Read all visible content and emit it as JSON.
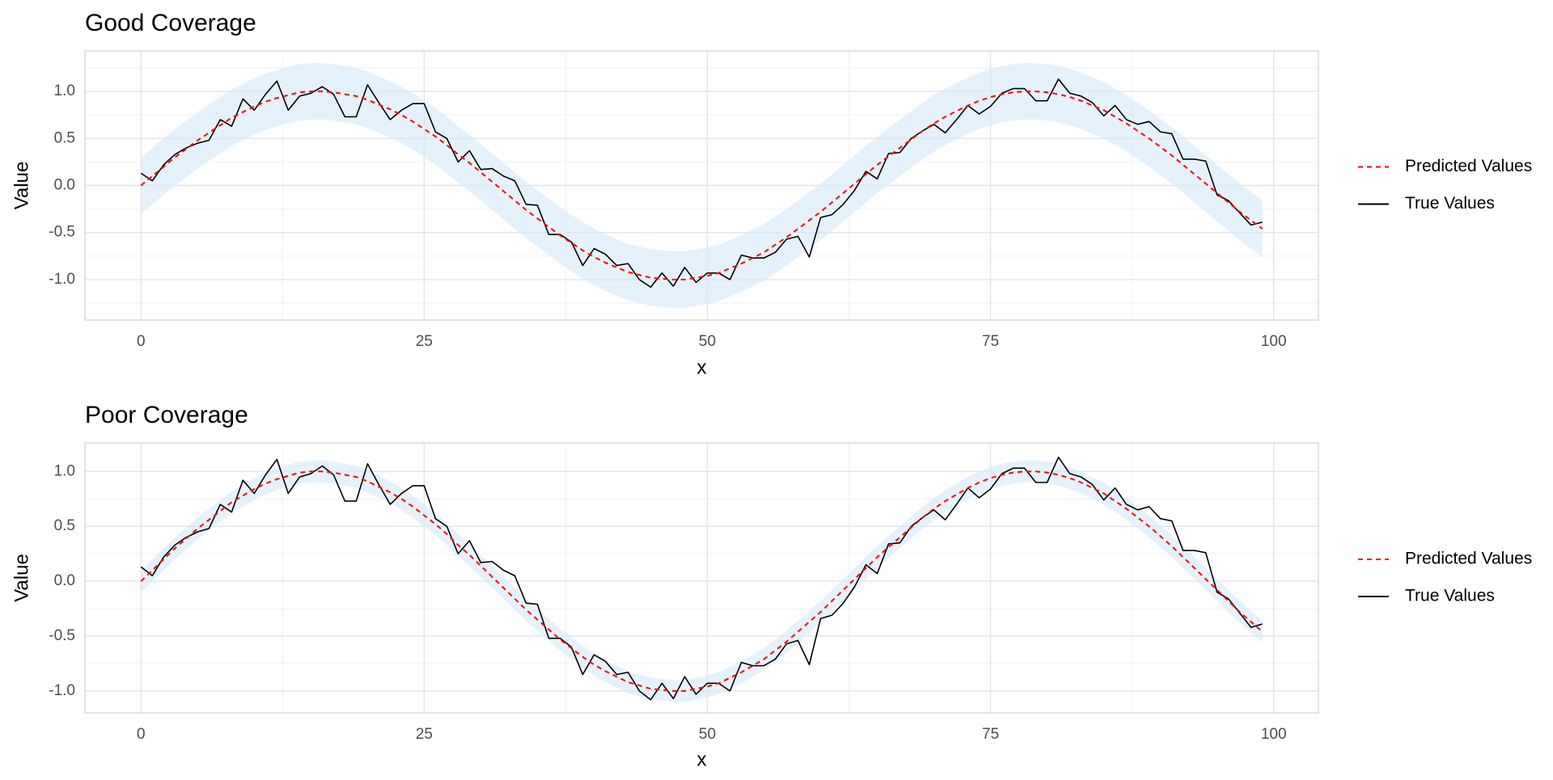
{
  "chart_data": [
    {
      "type": "line",
      "title": "Good Coverage",
      "x_label": "x",
      "y_label": "Value",
      "x": [
        0,
        1,
        2,
        3,
        4,
        5,
        6,
        7,
        8,
        9,
        10,
        11,
        12,
        13,
        14,
        15,
        16,
        17,
        18,
        19,
        20,
        21,
        22,
        23,
        24,
        25,
        26,
        27,
        28,
        29,
        30,
        31,
        32,
        33,
        34,
        35,
        36,
        37,
        38,
        39,
        40,
        41,
        42,
        43,
        44,
        45,
        46,
        47,
        48,
        49,
        50,
        51,
        52,
        53,
        54,
        55,
        56,
        57,
        58,
        59,
        60,
        61,
        62,
        63,
        64,
        65,
        66,
        67,
        68,
        69,
        70,
        71,
        72,
        73,
        74,
        75,
        76,
        77,
        78,
        79,
        80,
        81,
        82,
        83,
        84,
        85,
        86,
        87,
        88,
        89,
        90,
        91,
        92,
        93,
        94,
        95,
        96,
        97,
        98,
        99
      ],
      "band": {
        "color": "#d6eaf8",
        "upper": [
          0.3,
          0.4,
          0.5,
          0.6,
          0.69,
          0.78,
          0.86,
          0.94,
          1.02,
          1.08,
          1.14,
          1.19,
          1.23,
          1.26,
          1.29,
          1.3,
          1.3,
          1.29,
          1.27,
          1.25,
          1.21,
          1.16,
          1.11,
          1.05,
          0.98,
          0.9,
          0.82,
          0.73,
          0.63,
          0.54,
          0.44,
          0.34,
          0.24,
          0.14,
          0.04,
          -0.05,
          -0.14,
          -0.23,
          -0.31,
          -0.39,
          -0.46,
          -0.52,
          -0.57,
          -0.62,
          -0.65,
          -0.68,
          -0.69,
          -0.7,
          -0.7,
          -0.68,
          -0.66,
          -0.63,
          -0.58,
          -0.53,
          -0.47,
          -0.41,
          -0.33,
          -0.25,
          -0.16,
          -0.07,
          0.02,
          0.12,
          0.22,
          0.32,
          0.42,
          0.52,
          0.61,
          0.7,
          0.79,
          0.88,
          0.96,
          1.03,
          1.09,
          1.15,
          1.2,
          1.24,
          1.27,
          1.29,
          1.3,
          1.3,
          1.29,
          1.27,
          1.24,
          1.2,
          1.15,
          1.1,
          1.03,
          0.96,
          0.88,
          0.8,
          0.71,
          0.62,
          0.52,
          0.42,
          0.32,
          0.22,
          0.12,
          0.02,
          -0.07,
          -0.16
        ],
        "lower": [
          -0.3,
          -0.2,
          -0.1,
          0.0,
          0.09,
          0.18,
          0.26,
          0.34,
          0.42,
          0.48,
          0.54,
          0.59,
          0.63,
          0.66,
          0.69,
          0.7,
          0.7,
          0.69,
          0.67,
          0.65,
          0.61,
          0.56,
          0.51,
          0.45,
          0.38,
          0.3,
          0.22,
          0.13,
          0.03,
          -0.06,
          -0.16,
          -0.26,
          -0.36,
          -0.46,
          -0.56,
          -0.65,
          -0.74,
          -0.83,
          -0.91,
          -0.99,
          -1.06,
          -1.12,
          -1.17,
          -1.22,
          -1.25,
          -1.28,
          -1.29,
          -1.3,
          -1.3,
          -1.28,
          -1.26,
          -1.23,
          -1.18,
          -1.13,
          -1.07,
          -1.01,
          -0.93,
          -0.85,
          -0.76,
          -0.67,
          -0.58,
          -0.48,
          -0.38,
          -0.28,
          -0.18,
          -0.08,
          0.01,
          0.1,
          0.19,
          0.28,
          0.36,
          0.43,
          0.49,
          0.55,
          0.6,
          0.64,
          0.67,
          0.69,
          0.7,
          0.7,
          0.69,
          0.67,
          0.64,
          0.6,
          0.55,
          0.5,
          0.43,
          0.36,
          0.28,
          0.2,
          0.11,
          0.02,
          -0.08,
          -0.18,
          -0.28,
          -0.38,
          -0.48,
          -0.58,
          -0.67,
          -0.76
        ]
      },
      "series": [
        {
          "name": "Predicted Values",
          "color": "red",
          "dashed": true,
          "values": [
            0.0,
            0.1,
            0.2,
            0.3,
            0.39,
            0.48,
            0.56,
            0.64,
            0.72,
            0.78,
            0.84,
            0.89,
            0.93,
            0.96,
            0.99,
            1.0,
            1.0,
            0.99,
            0.97,
            0.95,
            0.91,
            0.86,
            0.81,
            0.75,
            0.68,
            0.6,
            0.52,
            0.43,
            0.33,
            0.24,
            0.14,
            0.04,
            -0.06,
            -0.16,
            -0.26,
            -0.35,
            -0.44,
            -0.53,
            -0.61,
            -0.69,
            -0.76,
            -0.82,
            -0.87,
            -0.92,
            -0.95,
            -0.98,
            -0.99,
            -1.0,
            -1.0,
            -0.98,
            -0.96,
            -0.93,
            -0.88,
            -0.83,
            -0.77,
            -0.71,
            -0.63,
            -0.55,
            -0.46,
            -0.37,
            -0.28,
            -0.18,
            -0.08,
            0.02,
            0.12,
            0.22,
            0.31,
            0.4,
            0.49,
            0.58,
            0.66,
            0.73,
            0.79,
            0.85,
            0.9,
            0.94,
            0.97,
            0.99,
            1.0,
            1.0,
            0.99,
            0.97,
            0.94,
            0.9,
            0.85,
            0.8,
            0.73,
            0.66,
            0.58,
            0.5,
            0.41,
            0.32,
            0.22,
            0.12,
            0.02,
            -0.08,
            -0.18,
            -0.28,
            -0.37,
            -0.46
          ]
        },
        {
          "name": "True Values",
          "color": "black",
          "dashed": false,
          "values": [
            0.13,
            0.05,
            0.22,
            0.33,
            0.4,
            0.45,
            0.48,
            0.7,
            0.63,
            0.92,
            0.8,
            0.97,
            1.11,
            0.8,
            0.95,
            0.98,
            1.05,
            0.97,
            0.73,
            0.73,
            1.07,
            0.88,
            0.7,
            0.8,
            0.87,
            0.87,
            0.57,
            0.5,
            0.25,
            0.37,
            0.17,
            0.18,
            0.1,
            0.05,
            -0.2,
            -0.21,
            -0.52,
            -0.52,
            -0.6,
            -0.85,
            -0.67,
            -0.73,
            -0.85,
            -0.83,
            -1.0,
            -1.08,
            -0.93,
            -1.07,
            -0.87,
            -1.03,
            -0.93,
            -0.93,
            -1.0,
            -0.74,
            -0.77,
            -0.77,
            -0.71,
            -0.57,
            -0.54,
            -0.76,
            -0.34,
            -0.31,
            -0.2,
            -0.05,
            0.15,
            0.07,
            0.34,
            0.35,
            0.5,
            0.58,
            0.65,
            0.56,
            0.7,
            0.85,
            0.76,
            0.84,
            0.98,
            1.03,
            1.03,
            0.9,
            0.9,
            1.13,
            0.98,
            0.95,
            0.88,
            0.74,
            0.85,
            0.7,
            0.65,
            0.68,
            0.57,
            0.55,
            0.28,
            0.28,
            0.26,
            -0.1,
            -0.16,
            -0.29,
            -0.42,
            -0.39
          ]
        }
      ],
      "xlim": [
        -4.95,
        103.95
      ],
      "xticks": [
        0,
        25,
        50,
        75,
        100
      ],
      "minor_xticks": [
        12.5,
        37.5,
        62.5,
        87.5
      ],
      "ylim": [
        -1.43,
        1.43
      ],
      "yticks": [
        {
          "value": -1,
          "label": "-1.0"
        },
        {
          "value": -0.5,
          "label": "-0.5"
        },
        {
          "value": 0,
          "label": "0.0"
        },
        {
          "value": 0.5,
          "label": "0.5"
        },
        {
          "value": 1,
          "label": "1.0"
        }
      ],
      "minor_yticks": [
        -1.25,
        -0.75,
        -0.25,
        0.25,
        0.75,
        1.25
      ],
      "grid": true,
      "legend": "right"
    },
    {
      "type": "line",
      "title": "Poor Coverage",
      "x_label": "x",
      "y_label": "Value",
      "x": [
        0,
        1,
        2,
        3,
        4,
        5,
        6,
        7,
        8,
        9,
        10,
        11,
        12,
        13,
        14,
        15,
        16,
        17,
        18,
        19,
        20,
        21,
        22,
        23,
        24,
        25,
        26,
        27,
        28,
        29,
        30,
        31,
        32,
        33,
        34,
        35,
        36,
        37,
        38,
        39,
        40,
        41,
        42,
        43,
        44,
        45,
        46,
        47,
        48,
        49,
        50,
        51,
        52,
        53,
        54,
        55,
        56,
        57,
        58,
        59,
        60,
        61,
        62,
        63,
        64,
        65,
        66,
        67,
        68,
        69,
        70,
        71,
        72,
        73,
        74,
        75,
        76,
        77,
        78,
        79,
        80,
        81,
        82,
        83,
        84,
        85,
        86,
        87,
        88,
        89,
        90,
        91,
        92,
        93,
        94,
        95,
        96,
        97,
        98,
        99
      ],
      "band": {
        "color": "#d6eaf8",
        "upper": [
          0.1,
          0.2,
          0.3,
          0.4,
          0.49,
          0.58,
          0.66,
          0.74,
          0.82,
          0.88,
          0.94,
          0.99,
          1.03,
          1.06,
          1.09,
          1.1,
          1.1,
          1.09,
          1.07,
          1.05,
          1.01,
          0.96,
          0.91,
          0.85,
          0.78,
          0.7,
          0.62,
          0.53,
          0.43,
          0.34,
          0.24,
          0.14,
          0.04,
          -0.06,
          -0.16,
          -0.25,
          -0.34,
          -0.43,
          -0.51,
          -0.59,
          -0.66,
          -0.72,
          -0.77,
          -0.82,
          -0.85,
          -0.88,
          -0.89,
          -0.9,
          -0.9,
          -0.88,
          -0.86,
          -0.83,
          -0.78,
          -0.73,
          -0.67,
          -0.61,
          -0.53,
          -0.45,
          -0.36,
          -0.27,
          -0.18,
          -0.08,
          0.02,
          0.12,
          0.22,
          0.32,
          0.41,
          0.5,
          0.59,
          0.68,
          0.76,
          0.83,
          0.89,
          0.95,
          1.0,
          1.04,
          1.07,
          1.09,
          1.1,
          1.1,
          1.09,
          1.07,
          1.04,
          1.0,
          0.95,
          0.9,
          0.83,
          0.76,
          0.68,
          0.6,
          0.51,
          0.42,
          0.32,
          0.22,
          0.12,
          0.02,
          -0.08,
          -0.18,
          -0.27,
          -0.36
        ],
        "lower": [
          -0.1,
          0.0,
          0.1,
          0.2,
          0.29,
          0.38,
          0.46,
          0.54,
          0.62,
          0.68,
          0.74,
          0.79,
          0.83,
          0.86,
          0.89,
          0.9,
          0.9,
          0.89,
          0.87,
          0.85,
          0.81,
          0.76,
          0.71,
          0.65,
          0.58,
          0.5,
          0.42,
          0.33,
          0.23,
          0.14,
          0.04,
          -0.06,
          -0.16,
          -0.26,
          -0.36,
          -0.45,
          -0.54,
          -0.63,
          -0.71,
          -0.79,
          -0.86,
          -0.92,
          -0.97,
          -1.02,
          -1.05,
          -1.08,
          -1.09,
          -1.1,
          -1.1,
          -1.08,
          -1.06,
          -1.03,
          -0.98,
          -0.93,
          -0.87,
          -0.81,
          -0.73,
          -0.65,
          -0.56,
          -0.47,
          -0.38,
          -0.28,
          -0.18,
          -0.08,
          0.02,
          0.12,
          0.21,
          0.3,
          0.39,
          0.48,
          0.56,
          0.63,
          0.69,
          0.75,
          0.8,
          0.84,
          0.87,
          0.89,
          0.9,
          0.9,
          0.89,
          0.87,
          0.84,
          0.8,
          0.75,
          0.7,
          0.63,
          0.56,
          0.48,
          0.4,
          0.31,
          0.22,
          0.12,
          0.02,
          -0.08,
          -0.18,
          -0.28,
          -0.38,
          -0.47,
          -0.56
        ]
      },
      "series": [
        {
          "name": "Predicted Values",
          "color": "red",
          "dashed": true,
          "values": [
            0.0,
            0.1,
            0.2,
            0.3,
            0.39,
            0.48,
            0.56,
            0.64,
            0.72,
            0.78,
            0.84,
            0.89,
            0.93,
            0.96,
            0.99,
            1.0,
            1.0,
            0.99,
            0.97,
            0.95,
            0.91,
            0.86,
            0.81,
            0.75,
            0.68,
            0.6,
            0.52,
            0.43,
            0.33,
            0.24,
            0.14,
            0.04,
            -0.06,
            -0.16,
            -0.26,
            -0.35,
            -0.44,
            -0.53,
            -0.61,
            -0.69,
            -0.76,
            -0.82,
            -0.87,
            -0.92,
            -0.95,
            -0.98,
            -0.99,
            -1.0,
            -1.0,
            -0.98,
            -0.96,
            -0.93,
            -0.88,
            -0.83,
            -0.77,
            -0.71,
            -0.63,
            -0.55,
            -0.46,
            -0.37,
            -0.28,
            -0.18,
            -0.08,
            0.02,
            0.12,
            0.22,
            0.31,
            0.4,
            0.49,
            0.58,
            0.66,
            0.73,
            0.79,
            0.85,
            0.9,
            0.94,
            0.97,
            0.99,
            1.0,
            1.0,
            0.99,
            0.97,
            0.94,
            0.9,
            0.85,
            0.8,
            0.73,
            0.66,
            0.58,
            0.5,
            0.41,
            0.32,
            0.22,
            0.12,
            0.02,
            -0.08,
            -0.18,
            -0.28,
            -0.37,
            -0.46
          ]
        },
        {
          "name": "True Values",
          "color": "black",
          "dashed": false,
          "values": [
            0.13,
            0.05,
            0.22,
            0.33,
            0.4,
            0.45,
            0.48,
            0.7,
            0.63,
            0.92,
            0.8,
            0.97,
            1.11,
            0.8,
            0.95,
            0.98,
            1.05,
            0.97,
            0.73,
            0.73,
            1.07,
            0.88,
            0.7,
            0.8,
            0.87,
            0.87,
            0.57,
            0.5,
            0.25,
            0.37,
            0.17,
            0.18,
            0.1,
            0.05,
            -0.2,
            -0.21,
            -0.52,
            -0.52,
            -0.6,
            -0.85,
            -0.67,
            -0.73,
            -0.85,
            -0.83,
            -1.0,
            -1.08,
            -0.93,
            -1.07,
            -0.87,
            -1.03,
            -0.93,
            -0.93,
            -1.0,
            -0.74,
            -0.77,
            -0.77,
            -0.71,
            -0.57,
            -0.54,
            -0.76,
            -0.34,
            -0.31,
            -0.2,
            -0.05,
            0.15,
            0.07,
            0.34,
            0.35,
            0.5,
            0.58,
            0.65,
            0.56,
            0.7,
            0.85,
            0.76,
            0.84,
            0.98,
            1.03,
            1.03,
            0.9,
            0.9,
            1.13,
            0.98,
            0.95,
            0.88,
            0.74,
            0.85,
            0.7,
            0.65,
            0.68,
            0.57,
            0.55,
            0.28,
            0.28,
            0.26,
            -0.1,
            -0.16,
            -0.29,
            -0.42,
            -0.39
          ]
        }
      ],
      "xlim": [
        -4.95,
        103.95
      ],
      "xticks": [
        0,
        25,
        50,
        75,
        100
      ],
      "minor_xticks": [
        12.5,
        37.5,
        62.5,
        87.5
      ],
      "ylim": [
        -1.2,
        1.26
      ],
      "yticks": [
        {
          "value": -1,
          "label": "-1.0"
        },
        {
          "value": -0.5,
          "label": "-0.5"
        },
        {
          "value": 0,
          "label": "0.0"
        },
        {
          "value": 0.5,
          "label": "0.5"
        },
        {
          "value": 1,
          "label": "1.0"
        }
      ],
      "minor_yticks": [
        -0.75,
        -0.25,
        0.25,
        0.75
      ],
      "grid": true,
      "legend": "right"
    }
  ]
}
